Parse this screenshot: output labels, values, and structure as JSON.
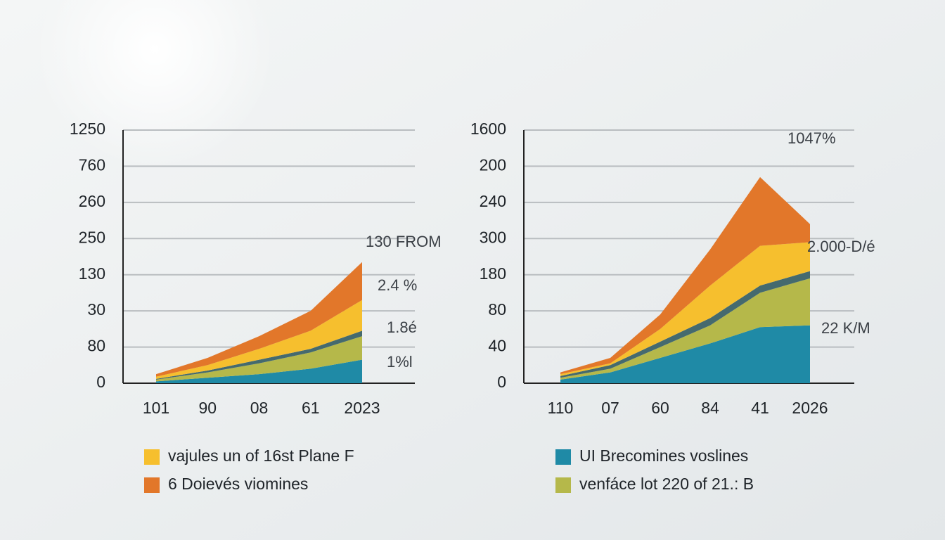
{
  "chart_data": [
    {
      "type": "area",
      "stacked": true,
      "categories": [
        "101",
        "90",
        "08",
        "61",
        "2023"
      ],
      "ylim": [
        0,
        7
      ],
      "yticks": [
        {
          "value": 0,
          "label": "0"
        },
        {
          "value": 1,
          "label": "80"
        },
        {
          "value": 2,
          "label": "30"
        },
        {
          "value": 3,
          "label": "130"
        },
        {
          "value": 4,
          "label": "250"
        },
        {
          "value": 5,
          "label": "260"
        },
        {
          "value": 6,
          "label": "760"
        },
        {
          "value": 7,
          "label": "1250"
        }
      ],
      "grid": true,
      "series": [
        {
          "color": "#1f8aa6",
          "values": [
            0.05,
            0.15,
            0.25,
            0.4,
            0.65
          ]
        },
        {
          "color": "#b5b84a",
          "values": [
            0.05,
            0.15,
            0.3,
            0.45,
            0.65
          ]
        },
        {
          "color": "#456a6e",
          "values": [
            0.02,
            0.05,
            0.1,
            0.1,
            0.15
          ]
        },
        {
          "name": "vajules un of 16st Plane F",
          "color": "#f6bf2e",
          "values": [
            0.06,
            0.15,
            0.3,
            0.5,
            0.85
          ]
        },
        {
          "name": "6 Doievés viomines",
          "color": "#e2772a",
          "values": [
            0.07,
            0.2,
            0.35,
            0.55,
            1.05
          ]
        }
      ],
      "annotations": [
        "130 FROM",
        "2.4 %",
        "1.8é",
        "1%l"
      ]
    },
    {
      "type": "area",
      "stacked": true,
      "categories": [
        "110",
        "07",
        "60",
        "84",
        "41",
        "2026"
      ],
      "ylim": [
        0,
        7
      ],
      "yticks": [
        {
          "value": 0,
          "label": "0"
        },
        {
          "value": 1,
          "label": "40"
        },
        {
          "value": 2,
          "label": "80"
        },
        {
          "value": 3,
          "label": "180"
        },
        {
          "value": 4,
          "label": "300"
        },
        {
          "value": 5,
          "label": "240"
        },
        {
          "value": 6,
          "label": "200"
        },
        {
          "value": 7,
          "label": "1600"
        }
      ],
      "grid": true,
      "series": [
        {
          "name": "UI Brecomines voslines",
          "color": "#1f8aa6",
          "values": [
            0.1,
            0.3,
            0.7,
            1.1,
            1.55,
            1.6
          ]
        },
        {
          "name": "venfáce lot 220 of 21.: B",
          "color": "#b5b84a",
          "values": [
            0.05,
            0.1,
            0.3,
            0.5,
            0.95,
            1.3
          ]
        },
        {
          "color": "#456a6e",
          "values": [
            0.05,
            0.1,
            0.15,
            0.2,
            0.2,
            0.2
          ]
        },
        {
          "color": "#f6bf2e",
          "values": [
            0.05,
            0.05,
            0.35,
            0.9,
            1.1,
            0.8
          ]
        },
        {
          "color": "#e2772a",
          "values": [
            0.05,
            0.15,
            0.4,
            1.0,
            1.9,
            0.5
          ]
        }
      ],
      "annotations": [
        "1047%",
        "2.000-D/é",
        "22 K/M"
      ]
    }
  ]
}
